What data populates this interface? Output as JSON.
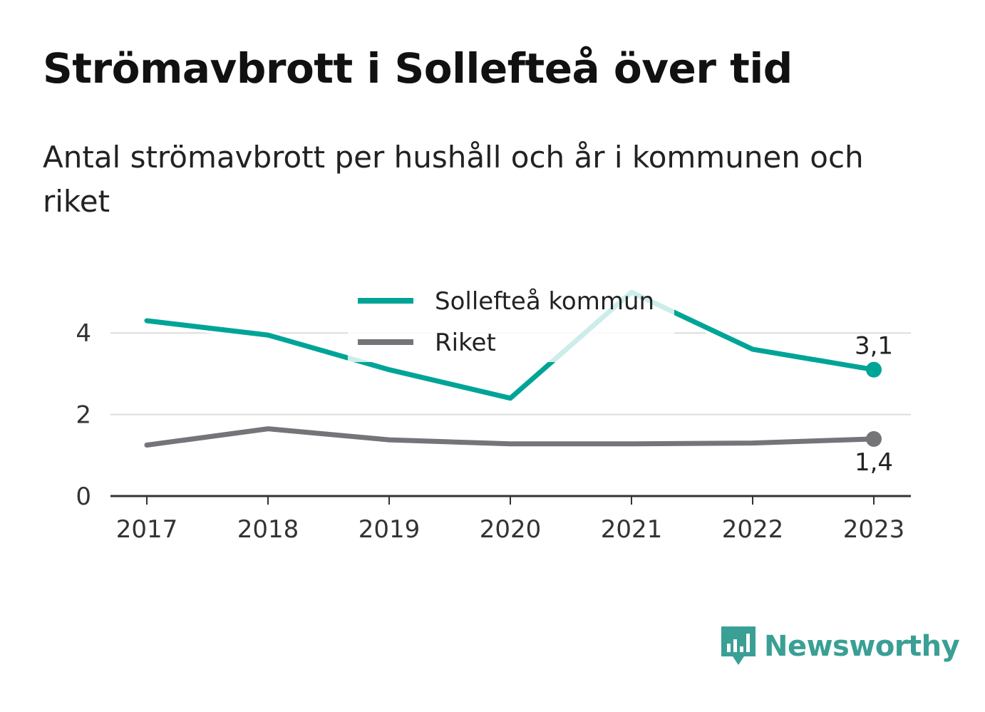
{
  "title": "Strömavbrott i Sollefteå över tid",
  "subtitle": "Antal strömavbrott per hushåll och år i kommunen och riket",
  "brand": {
    "name": "Newsworthy",
    "color": "#3a9f95",
    "icon": "bar-chart-speech-bubble-icon"
  },
  "chart_data": {
    "type": "line",
    "title": "",
    "xlabel": "",
    "ylabel": "",
    "x": [
      2017,
      2018,
      2019,
      2020,
      2021,
      2022,
      2023
    ],
    "ylim": [
      0,
      5
    ],
    "yticks": [
      0,
      2,
      4
    ],
    "grid": true,
    "legend_position": "top-center",
    "series": [
      {
        "name": "Sollefteå kommun",
        "color": "#00a497",
        "values": [
          4.3,
          3.95,
          3.1,
          2.4,
          5.0,
          3.6,
          3.1
        ],
        "end_label": "3,1",
        "end_label_position": "above"
      },
      {
        "name": "Riket",
        "color": "#747479",
        "values": [
          1.25,
          1.65,
          1.38,
          1.28,
          1.28,
          1.3,
          1.4
        ],
        "end_label": "1,4",
        "end_label_position": "below"
      }
    ]
  }
}
